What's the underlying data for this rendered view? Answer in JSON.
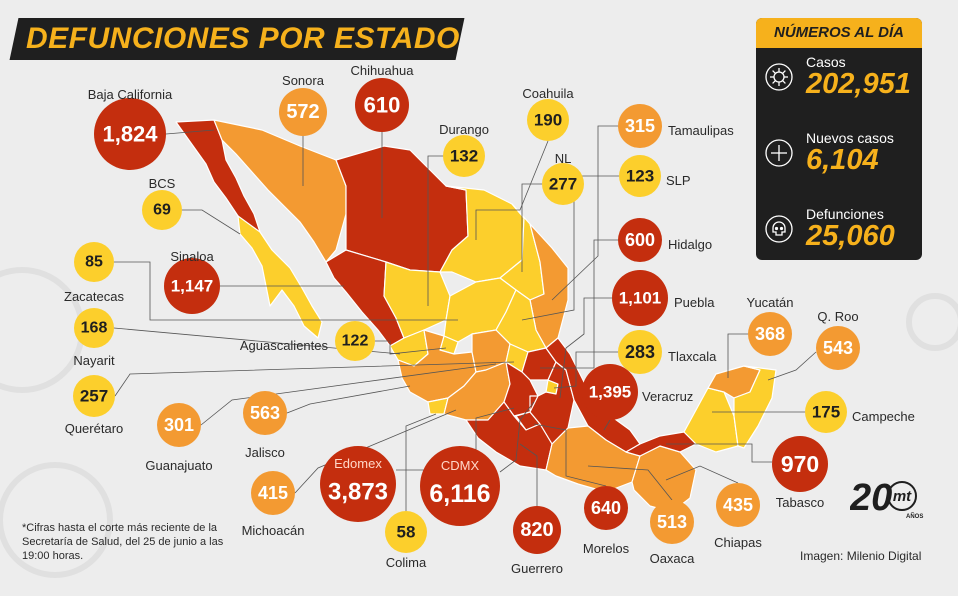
{
  "chart_data": {
    "type": "map",
    "title": "DEFUNCIONES POR ESTADO",
    "unit": "defunciones",
    "states": [
      {
        "name": "Baja California",
        "value": "1,824",
        "level": "high"
      },
      {
        "name": "Sonora",
        "value": "572",
        "level": "mid"
      },
      {
        "name": "Chihuahua",
        "value": "610",
        "level": "high"
      },
      {
        "name": "Durango",
        "value": "132",
        "level": "low"
      },
      {
        "name": "Coahuila",
        "value": "190",
        "level": "low"
      },
      {
        "name": "NL",
        "value": "277",
        "level": "low"
      },
      {
        "name": "Tamaulipas",
        "value": "315",
        "level": "mid"
      },
      {
        "name": "SLP",
        "value": "123",
        "level": "low"
      },
      {
        "name": "BCS",
        "value": "69",
        "level": "low"
      },
      {
        "name": "Sinaloa",
        "value": "1,147",
        "level": "high"
      },
      {
        "name": "Hidalgo",
        "value": "600",
        "level": "high"
      },
      {
        "name": "Zacatecas",
        "value": "85",
        "level": "low"
      },
      {
        "name": "Puebla",
        "value": "1,101",
        "level": "high"
      },
      {
        "name": "Nayarit",
        "value": "168",
        "level": "low"
      },
      {
        "name": "Aguascalientes",
        "value": "122",
        "level": "low"
      },
      {
        "name": "Tlaxcala",
        "value": "283",
        "level": "low"
      },
      {
        "name": "Yucatán",
        "value": "368",
        "level": "mid"
      },
      {
        "name": "Q. Roo",
        "value": "543",
        "level": "mid"
      },
      {
        "name": "Querétaro",
        "value": "257",
        "level": "low"
      },
      {
        "name": "Veracruz",
        "value": "1,395",
        "level": "high"
      },
      {
        "name": "Campeche",
        "value": "175",
        "level": "low"
      },
      {
        "name": "Guanajuato",
        "value": "301",
        "level": "mid"
      },
      {
        "name": "Jalisco",
        "value": "563",
        "level": "mid"
      },
      {
        "name": "Tabasco",
        "value": "970",
        "level": "high"
      },
      {
        "name": "Edomex",
        "value": "3,873",
        "level": "high"
      },
      {
        "name": "CDMX",
        "value": "6,116",
        "level": "high"
      },
      {
        "name": "Michoacán",
        "value": "415",
        "level": "mid"
      },
      {
        "name": "Chiapas",
        "value": "435",
        "level": "mid"
      },
      {
        "name": "Morelos",
        "value": "640",
        "level": "high"
      },
      {
        "name": "Oaxaca",
        "value": "513",
        "level": "mid"
      },
      {
        "name": "Colima",
        "value": "58",
        "level": "low"
      },
      {
        "name": "Guerrero",
        "value": "820",
        "level": "high"
      }
    ]
  },
  "colors": {
    "high": "#c42e0e",
    "mid": "#f39a32",
    "low": "#fccf2c",
    "accent": "#f6b11c",
    "dark": "#1f1f1f"
  },
  "summary": {
    "heading": "NÚMEROS AL DÍA",
    "items": [
      {
        "label": "Casos",
        "value": "202,951",
        "icon": "virus-icon"
      },
      {
        "label": "Nuevos casos",
        "value": "6,104",
        "icon": "plus-icon"
      },
      {
        "label": "Defunciones",
        "value": "25,060",
        "icon": "skull-icon"
      }
    ]
  },
  "footnote": "*Cifras hasta el corte más reciente de la Secretaría de Salud, del 25 de junio a las 19:00 horas.",
  "credit": "Imagen: Milenio Digital",
  "logo": {
    "number": "20",
    "brand": "mt",
    "sub": "AÑOS"
  }
}
